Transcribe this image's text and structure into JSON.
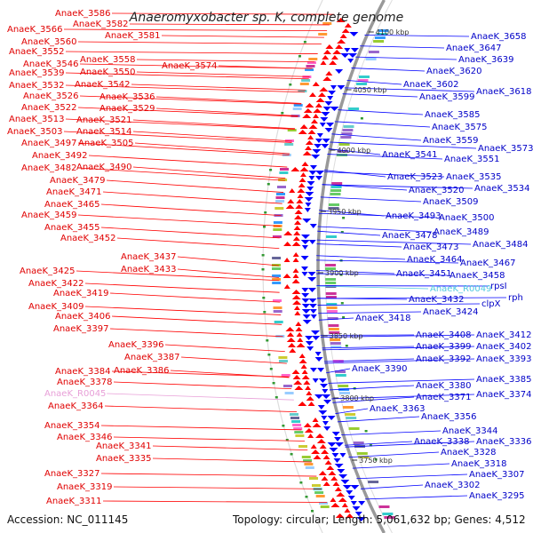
{
  "title": "Anaeromyxobacter sp. K, complete genome",
  "footer": {
    "accession": "Accession: NC_011145",
    "summary": "Topology: circular; Length: 5,061,632 bp; Genes: 4,512"
  },
  "colors": {
    "forward": "#ff0000",
    "reverse": "#0000ff",
    "backbone": "#999999",
    "rna_label": "#e8a0d8",
    "cyan_label": "#50c8e0"
  },
  "kbp_ticks": [
    "4100 kbp",
    "4050 kbp",
    "4000 kbp",
    "3950 kbp",
    "3900 kbp",
    "3850 kbp",
    "3800 kbp",
    "3750 kbp"
  ],
  "left_labels": [
    "AnaeK_3586",
    "AnaeK_3582",
    "AnaeK_3566",
    "AnaeK_3581",
    "AnaeK_3560",
    "AnaeK_3552",
    "AnaeK_3558",
    "AnaeK_3574",
    "AnaeK_3546",
    "AnaeK_3550",
    "AnaeK_3539",
    "AnaeK_3542",
    "AnaeK_3532",
    "AnaeK_3536",
    "AnaeK_3526",
    "AnaeK_3529",
    "AnaeK_3522",
    "AnaeK_3521",
    "AnaeK_3513",
    "AnaeK_3514",
    "AnaeK_3503",
    "AnaeK_3505",
    "AnaeK_3497",
    "AnaeK_3492",
    "AnaeK_3490",
    "AnaeK_3482",
    "AnaeK_3479",
    "AnaeK_3471",
    "AnaeK_3465",
    "AnaeK_3459",
    "AnaeK_3455",
    "AnaeK_3452",
    "AnaeK_3437",
    "AnaeK_3433",
    "AnaeK_3425",
    "AnaeK_3422",
    "AnaeK_3419",
    "AnaeK_3409",
    "AnaeK_3406",
    "AnaeK_3397",
    "AnaeK_3396",
    "AnaeK_3387",
    "AnaeK_3384",
    "AnaeK_3386",
    "AnaeK_3378",
    "AnaeK_R0045",
    "AnaeK_3364",
    "AnaeK_3354",
    "AnaeK_3346",
    "AnaeK_3341",
    "AnaeK_3335",
    "AnaeK_3327",
    "AnaeK_3319",
    "AnaeK_3311"
  ],
  "right_labels": [
    "AnaeK_3658",
    "AnaeK_3647",
    "AnaeK_3639",
    "AnaeK_3620",
    "AnaeK_3602",
    "AnaeK_3618",
    "AnaeK_3599",
    "AnaeK_3585",
    "AnaeK_3575",
    "AnaeK_3559",
    "AnaeK_3573",
    "AnaeK_3541",
    "AnaeK_3551",
    "AnaeK_3523",
    "AnaeK_3535",
    "AnaeK_3520",
    "AnaeK_3534",
    "AnaeK_3509",
    "AnaeK_3493",
    "AnaeK_3500",
    "AnaeK_3489",
    "AnaeK_3478",
    "AnaeK_3484",
    "AnaeK_3473",
    "AnaeK_3464",
    "AnaeK_3467",
    "AnaeK_3451",
    "AnaeK_3458",
    "AnaeK_R0049",
    "rpsI",
    "AnaeK_3432",
    "rph",
    "clpX",
    "AnaeK_3424",
    "AnaeK_3418",
    "AnaeK_3408",
    "AnaeK_3412",
    "AnaeK_3399",
    "AnaeK_3402",
    "AnaeK_3392",
    "AnaeK_3393",
    "AnaeK_3390",
    "AnaeK_3385",
    "AnaeK_3380",
    "AnaeK_3374",
    "AnaeK_3371",
    "AnaeK_3363",
    "AnaeK_3356",
    "AnaeK_3344",
    "AnaeK_3338",
    "AnaeK_3336",
    "AnaeK_3328",
    "AnaeK_3318",
    "AnaeK_3307",
    "AnaeK_3302",
    "AnaeK_3295"
  ]
}
